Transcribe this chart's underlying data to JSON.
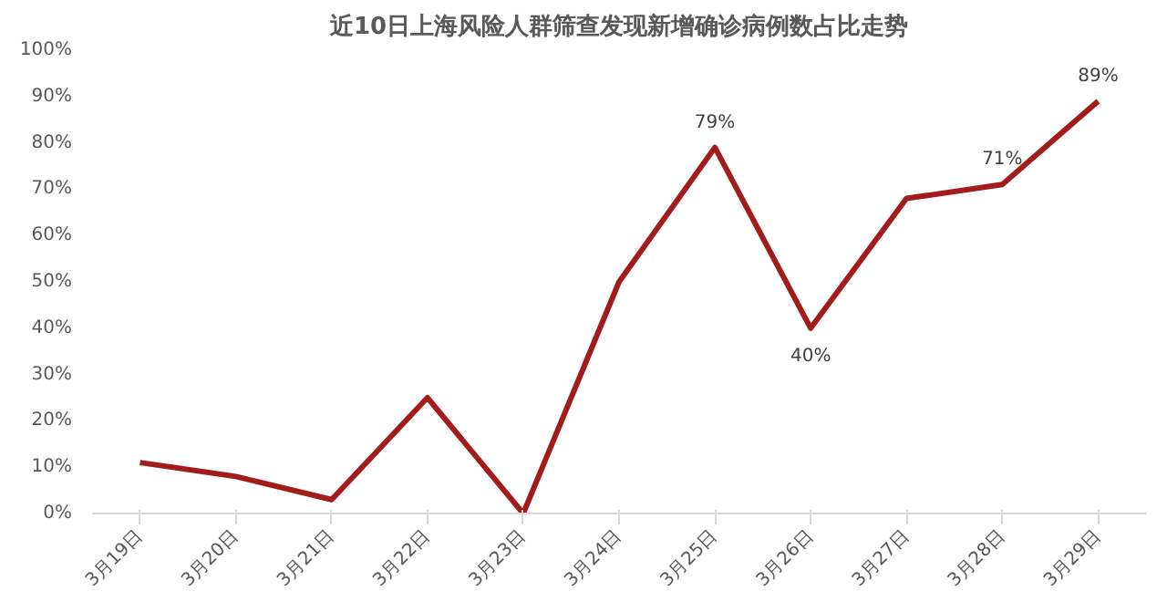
{
  "chart_data": {
    "type": "line",
    "title": "近10日上海风险人群筛查发现新增确诊病例数占比走势",
    "categories": [
      "3月19日",
      "3月20日",
      "3月21日",
      "3月22日",
      "3月23日",
      "3月24日",
      "3月25日",
      "3月26日",
      "3月27日",
      "3月28日",
      "3月29日"
    ],
    "series": [
      {
        "color": "#a31c1c",
        "values": [
          11,
          8,
          3,
          25,
          0,
          50,
          79,
          40,
          68,
          71,
          89
        ],
        "value_labels": [
          null,
          null,
          null,
          null,
          null,
          null,
          "79%",
          "40%",
          null,
          "71%",
          "89%"
        ]
      }
    ],
    "ylim": [
      0,
      100
    ],
    "yticks": [
      {
        "value": 0,
        "label": "0%"
      },
      {
        "value": 10,
        "label": "10%"
      },
      {
        "value": 20,
        "label": "20%"
      },
      {
        "value": 30,
        "label": "30%"
      },
      {
        "value": 40,
        "label": "40%"
      },
      {
        "value": 50,
        "label": "50%"
      },
      {
        "value": 60,
        "label": "60%"
      },
      {
        "value": 70,
        "label": "70%"
      },
      {
        "value": 80,
        "label": "80%"
      },
      {
        "value": 90,
        "label": "90%"
      },
      {
        "value": 100,
        "label": "100%"
      }
    ],
    "grid": false,
    "marker": "none",
    "line_style": "solid"
  }
}
